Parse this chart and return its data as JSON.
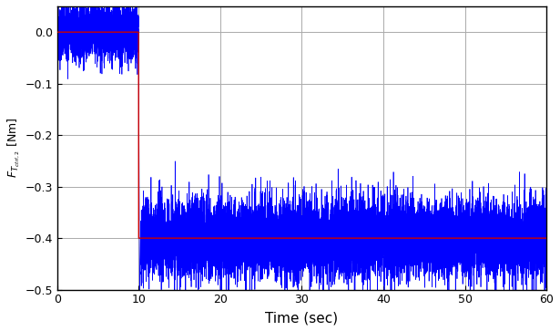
{
  "title": "",
  "xlabel": "Time (sec)",
  "ylabel": "$F_{T_{ctrl,2}}$ [Nm]",
  "xlim": [
    0,
    60
  ],
  "ylim": [
    -0.5,
    0.05
  ],
  "yticks": [
    -0.5,
    -0.4,
    -0.3,
    -0.2,
    -0.1,
    0.0
  ],
  "xticks": [
    0,
    10,
    20,
    30,
    40,
    50,
    60
  ],
  "fault_time": 10.0,
  "pre_fault_level": 0.0,
  "post_fault_level": -0.4,
  "noise_std_pre": 0.028,
  "noise_std_post": 0.038,
  "blue_color": "#0000FF",
  "red_color": "#CC0000",
  "bg_color": "#FFFFFF",
  "grid_color": "#AAAAAA",
  "linewidth_signal": 0.5,
  "linewidth_step": 1.0,
  "fs": 200,
  "duration": 60,
  "seed": 42
}
